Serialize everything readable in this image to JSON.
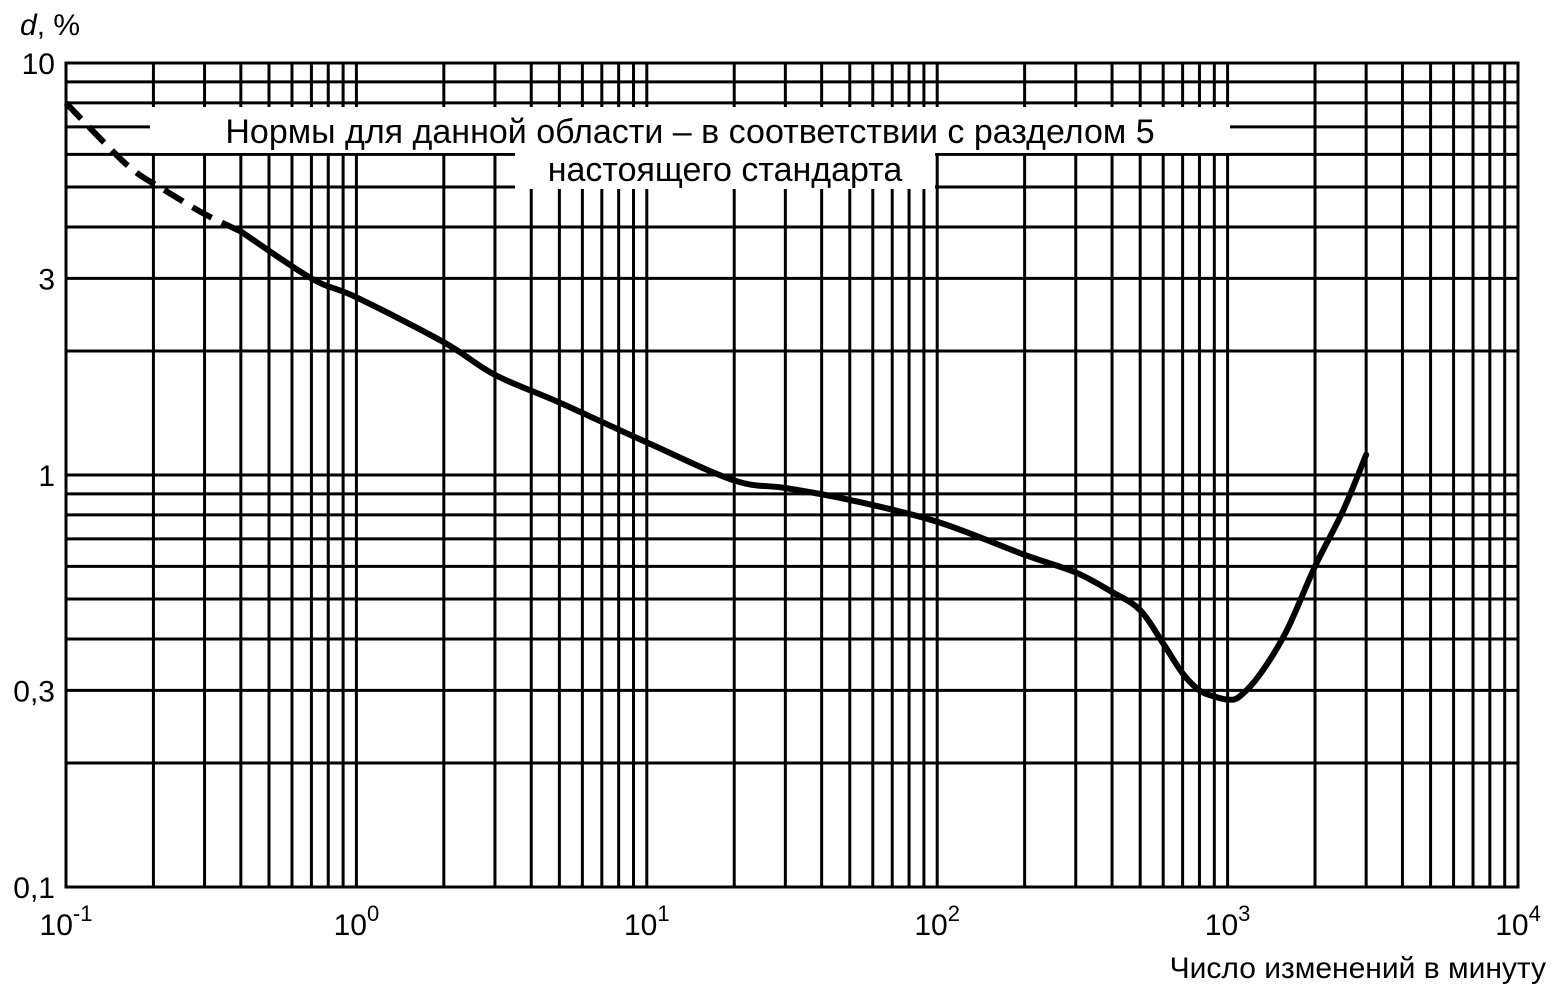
{
  "chart_data": {
    "type": "line",
    "title": "",
    "ylabel_var": "d",
    "ylabel_unit": ", %",
    "xlabel": "Число изменений в минуту",
    "x_scale": "log",
    "y_scale": "log",
    "xlim": [
      0.1,
      10000
    ],
    "ylim": [
      0.1,
      10
    ],
    "grid": true,
    "x_ticks": [
      {
        "value": 0.1,
        "base": "10",
        "exp": "-1"
      },
      {
        "value": 1,
        "base": "10",
        "exp": "0"
      },
      {
        "value": 10,
        "base": "10",
        "exp": "1"
      },
      {
        "value": 100,
        "base": "10",
        "exp": "2"
      },
      {
        "value": 1000,
        "base": "10",
        "exp": "3"
      },
      {
        "value": 10000,
        "base": "10",
        "exp": "4"
      }
    ],
    "y_ticks": [
      {
        "value": 10,
        "label": "10"
      },
      {
        "value": 3,
        "label": "3"
      },
      {
        "value": 1,
        "label": "1"
      },
      {
        "value": 0.3,
        "label": "0,3"
      },
      {
        "value": 0.1,
        "label": "0,1"
      }
    ],
    "annotation_lines": [
      "Нормы для данной области – в соответствии с разделом 5",
      "настоящего стандарта"
    ],
    "series": [
      {
        "style": "dashed",
        "x": [
          0.1,
          0.13,
          0.17,
          0.22,
          0.3,
          0.4
        ],
        "y": [
          8.0,
          6.6,
          5.5,
          4.9,
          4.3,
          3.9
        ]
      },
      {
        "style": "solid",
        "x": [
          0.4,
          0.7,
          1,
          2,
          3,
          5,
          10,
          20,
          30,
          50,
          100,
          200,
          300,
          400,
          500,
          600,
          700,
          800,
          900,
          1000,
          1100,
          1300,
          1600,
          2000,
          2500,
          3000
        ],
        "y": [
          3.9,
          3.0,
          2.7,
          2.1,
          1.75,
          1.5,
          1.2,
          0.97,
          0.93,
          0.87,
          0.77,
          0.64,
          0.58,
          0.52,
          0.47,
          0.39,
          0.33,
          0.3,
          0.29,
          0.285,
          0.29,
          0.33,
          0.42,
          0.6,
          0.82,
          1.12
        ]
      }
    ]
  }
}
